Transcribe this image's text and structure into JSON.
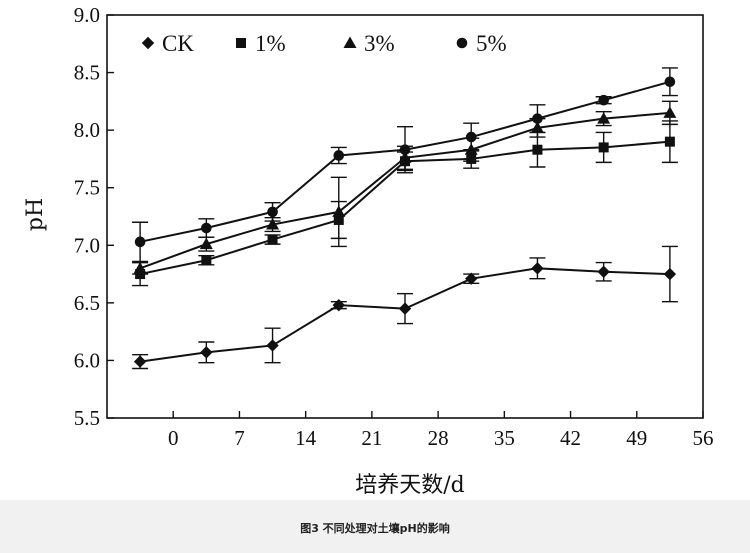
{
  "figure": {
    "caption": "图3   不同处理对土壤pH的影响"
  },
  "chart_data": {
    "type": "line",
    "xlabel": "培养天数/d",
    "ylabel": "pH",
    "xlim": [
      -7,
      56
    ],
    "ylim": [
      5.5,
      9.0
    ],
    "x_ticks": [
      "0",
      "7",
      "14",
      "21",
      "28",
      "35",
      "42",
      "49",
      "56"
    ],
    "y_ticks": [
      "5.5",
      "6.0",
      "6.5",
      "7.0",
      "7.5",
      "8.0",
      "8.5",
      "9.0"
    ],
    "grid": false,
    "legend_position": "top",
    "x": [
      -3.5,
      3.5,
      10.5,
      17.5,
      24.5,
      31.5,
      38.5,
      45.5,
      52.5
    ],
    "series": [
      {
        "name": "CK",
        "marker": "diamond",
        "values": [
          5.99,
          6.07,
          6.13,
          6.48,
          6.45,
          6.71,
          6.8,
          6.77,
          6.75
        ],
        "errors": [
          0.06,
          0.09,
          0.15,
          0.03,
          0.13,
          0.04,
          0.09,
          0.08,
          0.24
        ]
      },
      {
        "name": "1%",
        "marker": "square",
        "values": [
          6.75,
          6.87,
          7.05,
          7.22,
          7.73,
          7.75,
          7.83,
          7.85,
          7.9
        ],
        "errors": [
          0.1,
          0.04,
          0.04,
          0.16,
          0.08,
          0.08,
          0.15,
          0.13,
          0.18
        ]
      },
      {
        "name": "3%",
        "marker": "triangle",
        "values": [
          6.8,
          7.01,
          7.18,
          7.29,
          7.76,
          7.83,
          8.02,
          8.1,
          8.15
        ],
        "errors": [
          0.05,
          0.06,
          0.06,
          0.3,
          0.1,
          0.1,
          0.08,
          0.06,
          0.1
        ]
      },
      {
        "name": "5%",
        "marker": "circle",
        "values": [
          7.03,
          7.15,
          7.29,
          7.78,
          7.83,
          7.94,
          8.1,
          8.26,
          8.42
        ],
        "errors": [
          0.17,
          0.08,
          0.08,
          0.07,
          0.2,
          0.12,
          0.12,
          0.03,
          0.12
        ]
      }
    ]
  }
}
